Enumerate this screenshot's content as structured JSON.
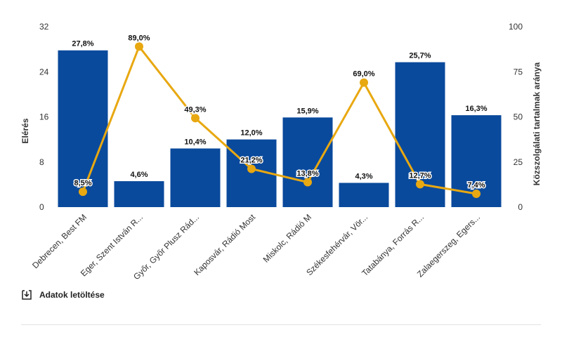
{
  "colors": {
    "bar": "#0a4a9c",
    "line": "#e8a811"
  },
  "download": {
    "label": "Adatok letöltése",
    "icon": "download-icon"
  },
  "chart_data": {
    "type": "bar",
    "categories": [
      "Debrecen, Best FM",
      "Eger, Szent István R...",
      "Győr, Győr Plusz Rád...",
      "Kaposvár, Rádió Most",
      "Miskolc, Rádió M",
      "Székesfehérvár, Vör...",
      "Tatabánya, Forrás R...",
      "Zalaegerszeg, Egers..."
    ],
    "series": [
      {
        "type": "bar",
        "axis": "left",
        "values": [
          27.8,
          4.6,
          10.4,
          12.0,
          15.9,
          4.3,
          25.7,
          16.3
        ],
        "labels": [
          "27,8%",
          "4,6%",
          "10,4%",
          "12,0%",
          "15,9%",
          "4,3%",
          "25,7%",
          "16,3%"
        ]
      },
      {
        "type": "line",
        "axis": "right",
        "values": [
          8.5,
          89.0,
          49.3,
          21.2,
          13.8,
          69.0,
          12.7,
          7.4
        ],
        "labels": [
          "8,5%",
          "89,0%",
          "49,3%",
          "21,2%",
          "13,8%",
          "69,0%",
          "12,7%",
          "7,4%"
        ]
      }
    ],
    "ylabel": "Elérés",
    "ylabel_right": "Közszolgálati tartalmak aránya",
    "ylim": [
      0,
      32
    ],
    "yticks": [
      "0",
      "8",
      "16",
      "24",
      "32"
    ],
    "ylim_right": [
      0,
      100
    ],
    "yticks_right": [
      "0",
      "25",
      "50",
      "75",
      "100"
    ],
    "grid": false,
    "legend": "none"
  }
}
